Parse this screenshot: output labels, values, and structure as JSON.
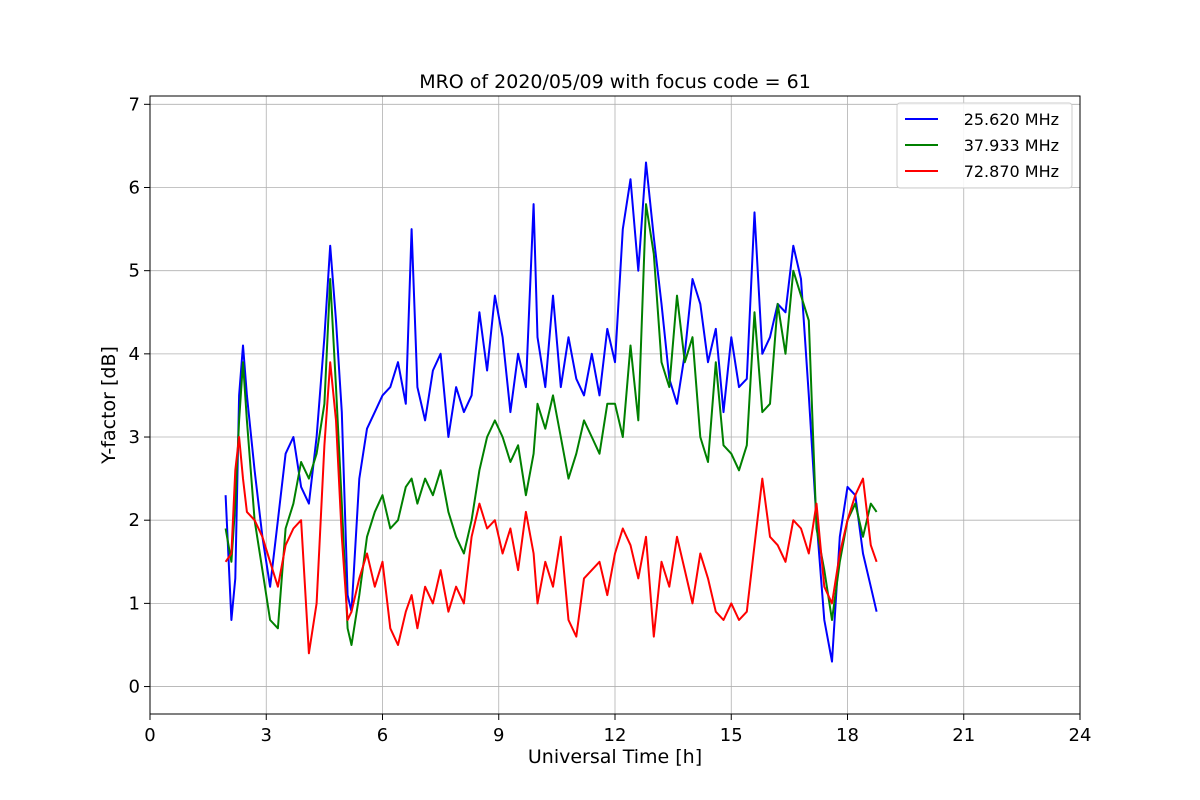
{
  "chart_data": {
    "type": "line",
    "title": "MRO of 2020/05/09 with focus code = 61",
    "xlabel": "Universal Time [h]",
    "ylabel": "Y-factor [dB]",
    "xlim": [
      0,
      24
    ],
    "ylim": [
      -0.33,
      7.1
    ],
    "xticks": [
      0,
      3,
      6,
      9,
      12,
      15,
      18,
      21,
      24
    ],
    "yticks": [
      0,
      1,
      2,
      3,
      4,
      5,
      6,
      7
    ],
    "grid": true,
    "legend_position": "top-right",
    "series": [
      {
        "name": "25.620 MHz",
        "color": "#0000ff",
        "x": [
          1.95,
          2.1,
          2.2,
          2.3,
          2.4,
          2.5,
          2.7,
          2.9,
          3.1,
          3.3,
          3.5,
          3.7,
          3.9,
          4.1,
          4.3,
          4.5,
          4.65,
          4.8,
          4.95,
          5.1,
          5.2,
          5.4,
          5.6,
          5.8,
          6.0,
          6.2,
          6.4,
          6.6,
          6.75,
          6.9,
          7.1,
          7.3,
          7.5,
          7.7,
          7.9,
          8.1,
          8.3,
          8.5,
          8.7,
          8.9,
          9.1,
          9.3,
          9.5,
          9.7,
          9.9,
          10.0,
          10.2,
          10.4,
          10.6,
          10.8,
          11.0,
          11.2,
          11.4,
          11.6,
          11.8,
          12.0,
          12.2,
          12.4,
          12.6,
          12.8,
          13.0,
          13.2,
          13.4,
          13.6,
          13.8,
          14.0,
          14.2,
          14.4,
          14.6,
          14.8,
          15.0,
          15.2,
          15.4,
          15.6,
          15.8,
          16.0,
          16.2,
          16.4,
          16.6,
          16.8,
          17.0,
          17.2,
          17.4,
          17.6,
          17.8,
          18.0,
          18.2,
          18.4,
          18.6,
          18.75
        ],
        "y": [
          2.3,
          0.8,
          1.3,
          3.5,
          4.1,
          3.5,
          2.6,
          1.8,
          1.2,
          2.0,
          2.8,
          3.0,
          2.4,
          2.2,
          3.0,
          4.2,
          5.3,
          4.4,
          3.3,
          1.1,
          0.9,
          2.5,
          3.1,
          3.3,
          3.5,
          3.6,
          3.9,
          3.4,
          5.5,
          3.6,
          3.2,
          3.8,
          4.0,
          3.0,
          3.6,
          3.3,
          3.5,
          4.5,
          3.8,
          4.7,
          4.2,
          3.3,
          4.0,
          3.6,
          5.8,
          4.2,
          3.6,
          4.7,
          3.6,
          4.2,
          3.7,
          3.5,
          4.0,
          3.5,
          4.3,
          3.9,
          5.5,
          6.1,
          5.0,
          6.3,
          5.4,
          4.6,
          3.7,
          3.4,
          4.0,
          4.9,
          4.6,
          3.9,
          4.3,
          3.3,
          4.2,
          3.6,
          3.7,
          5.7,
          4.0,
          4.2,
          4.6,
          4.5,
          5.3,
          4.9,
          3.5,
          2.0,
          0.8,
          0.3,
          1.8,
          2.4,
          2.3,
          1.6,
          1.2,
          0.9
        ]
      },
      {
        "name": "37.933 MHz",
        "color": "#008000",
        "x": [
          1.95,
          2.1,
          2.2,
          2.3,
          2.4,
          2.5,
          2.7,
          2.9,
          3.1,
          3.3,
          3.5,
          3.7,
          3.9,
          4.1,
          4.3,
          4.5,
          4.65,
          4.8,
          4.95,
          5.1,
          5.2,
          5.4,
          5.6,
          5.8,
          6.0,
          6.2,
          6.4,
          6.6,
          6.75,
          6.9,
          7.1,
          7.3,
          7.5,
          7.7,
          7.9,
          8.1,
          8.3,
          8.5,
          8.7,
          8.9,
          9.1,
          9.3,
          9.5,
          9.7,
          9.9,
          10.0,
          10.2,
          10.4,
          10.6,
          10.8,
          11.0,
          11.2,
          11.4,
          11.6,
          11.8,
          12.0,
          12.2,
          12.4,
          12.6,
          12.8,
          13.0,
          13.2,
          13.4,
          13.6,
          13.8,
          14.0,
          14.2,
          14.4,
          14.6,
          14.8,
          15.0,
          15.2,
          15.4,
          15.6,
          15.8,
          16.0,
          16.2,
          16.4,
          16.6,
          16.8,
          17.0,
          17.2,
          17.4,
          17.6,
          17.8,
          18.0,
          18.2,
          18.4,
          18.6,
          18.75
        ],
        "y": [
          1.9,
          1.5,
          2.2,
          3.2,
          3.9,
          3.2,
          2.0,
          1.4,
          0.8,
          0.7,
          1.9,
          2.2,
          2.7,
          2.5,
          2.8,
          3.4,
          4.9,
          3.6,
          2.2,
          0.7,
          0.5,
          1.1,
          1.8,
          2.1,
          2.3,
          1.9,
          2.0,
          2.4,
          2.5,
          2.2,
          2.5,
          2.3,
          2.6,
          2.1,
          1.8,
          1.6,
          2.0,
          2.6,
          3.0,
          3.2,
          3.0,
          2.7,
          2.9,
          2.3,
          2.8,
          3.4,
          3.1,
          3.5,
          3.0,
          2.5,
          2.8,
          3.2,
          3.0,
          2.8,
          3.4,
          3.4,
          3.0,
          4.1,
          3.2,
          5.8,
          5.2,
          3.9,
          3.6,
          4.7,
          3.9,
          4.2,
          3.0,
          2.7,
          3.9,
          2.9,
          2.8,
          2.6,
          2.9,
          4.5,
          3.3,
          3.4,
          4.6,
          4.0,
          5.0,
          4.7,
          4.4,
          1.9,
          1.4,
          0.8,
          1.5,
          2.0,
          2.2,
          1.8,
          2.2,
          2.1
        ]
      },
      {
        "name": "72.870 MHz",
        "color": "#ff0000",
        "x": [
          1.95,
          2.1,
          2.2,
          2.3,
          2.4,
          2.5,
          2.7,
          2.9,
          3.1,
          3.3,
          3.5,
          3.7,
          3.9,
          4.1,
          4.3,
          4.5,
          4.65,
          4.8,
          4.95,
          5.1,
          5.2,
          5.4,
          5.6,
          5.8,
          6.0,
          6.2,
          6.4,
          6.6,
          6.75,
          6.9,
          7.1,
          7.3,
          7.5,
          7.7,
          7.9,
          8.1,
          8.3,
          8.5,
          8.7,
          8.9,
          9.1,
          9.3,
          9.5,
          9.7,
          9.9,
          10.0,
          10.2,
          10.4,
          10.6,
          10.8,
          11.0,
          11.2,
          11.4,
          11.6,
          11.8,
          12.0,
          12.2,
          12.4,
          12.6,
          12.8,
          13.0,
          13.2,
          13.4,
          13.6,
          13.8,
          14.0,
          14.2,
          14.4,
          14.6,
          14.8,
          15.0,
          15.2,
          15.4,
          15.6,
          15.8,
          16.0,
          16.2,
          16.4,
          16.6,
          16.8,
          17.0,
          17.2,
          17.4,
          17.6,
          17.8,
          18.0,
          18.2,
          18.4,
          18.6,
          18.75
        ],
        "y": [
          1.5,
          1.6,
          2.6,
          3.0,
          2.5,
          2.1,
          2.0,
          1.8,
          1.5,
          1.2,
          1.7,
          1.9,
          2.0,
          0.4,
          1.0,
          2.9,
          3.9,
          3.2,
          1.8,
          0.8,
          0.9,
          1.3,
          1.6,
          1.2,
          1.5,
          0.7,
          0.5,
          0.9,
          1.1,
          0.7,
          1.2,
          1.0,
          1.4,
          0.9,
          1.2,
          1.0,
          1.8,
          2.2,
          1.9,
          2.0,
          1.6,
          1.9,
          1.4,
          2.1,
          1.6,
          1.0,
          1.5,
          1.2,
          1.8,
          0.8,
          0.6,
          1.3,
          1.4,
          1.5,
          1.1,
          1.6,
          1.9,
          1.7,
          1.3,
          1.8,
          0.6,
          1.5,
          1.2,
          1.8,
          1.4,
          1.0,
          1.6,
          1.3,
          0.9,
          0.8,
          1.0,
          0.8,
          0.9,
          1.7,
          2.5,
          1.8,
          1.7,
          1.5,
          2.0,
          1.9,
          1.6,
          2.2,
          1.2,
          1.0,
          1.6,
          2.0,
          2.3,
          2.5,
          1.7,
          1.5
        ]
      }
    ]
  }
}
